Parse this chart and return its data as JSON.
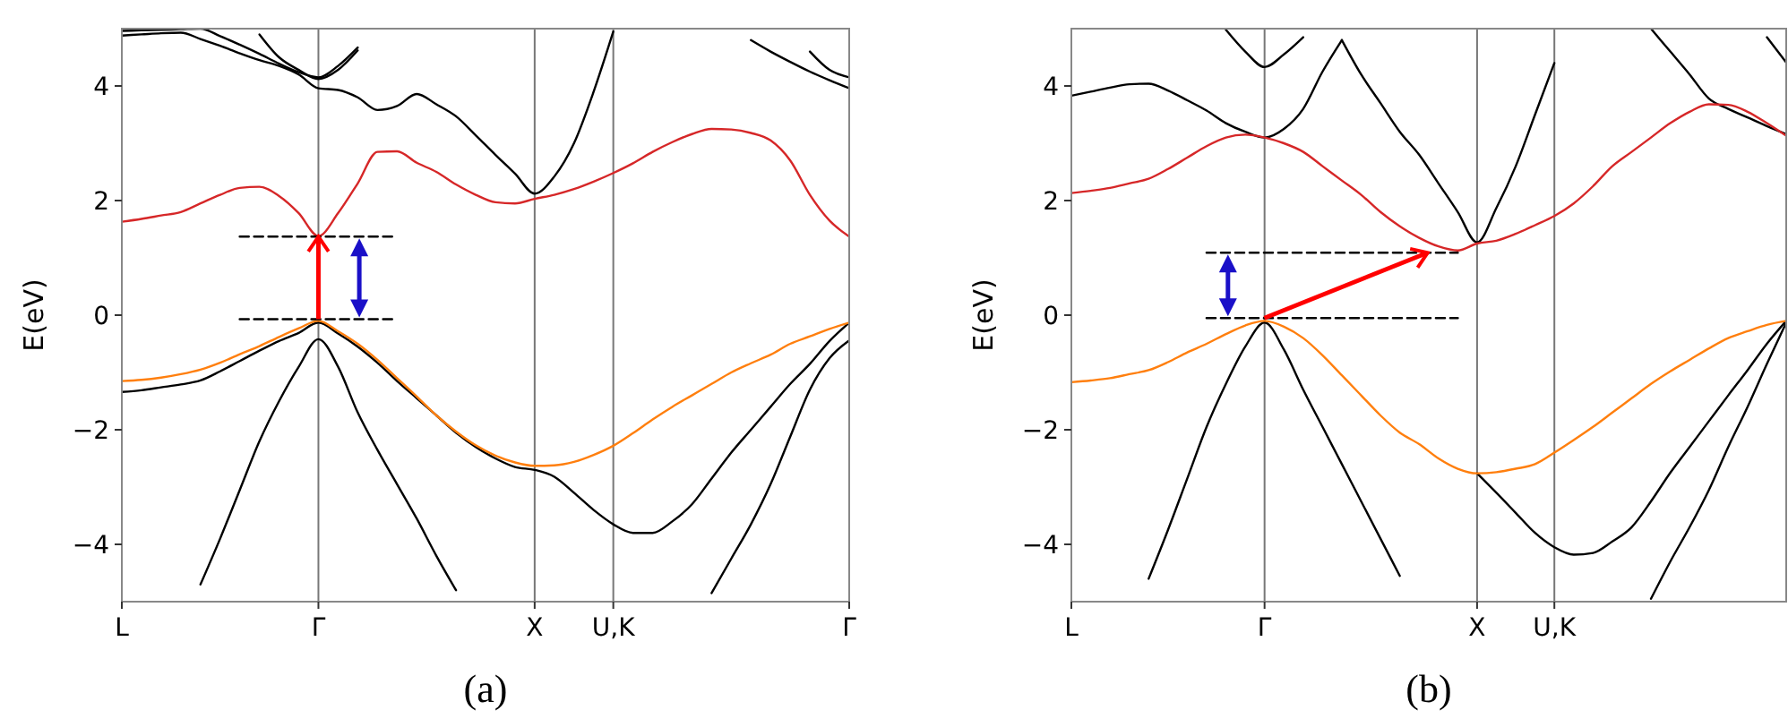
{
  "chart_data": [
    {
      "type": "line",
      "ylabel": "E(eV)",
      "annotations": [
        "(a)"
      ],
      "ylim": [
        -5,
        5
      ],
      "categories": [
        "L",
        null,
        null,
        null,
        null,
        null,
        null,
        null,
        null,
        null,
        "Γ",
        null,
        null,
        null,
        null,
        null,
        null,
        null,
        null,
        null,
        null,
        "X",
        null,
        null,
        null,
        "U,K",
        null,
        null,
        null,
        null,
        null,
        null,
        null,
        null,
        null,
        null,
        null,
        "Γ"
      ],
      "yticks": [
        -4,
        -2,
        0,
        2,
        4
      ],
      "grid": "x",
      "line_style": "solid",
      "series": [
        {
          "color": "#000000",
          "values": [
            4.88,
            4.9,
            4.92,
            4.93,
            4.82,
            4.7,
            4.57,
            4.45,
            4.35,
            4.2,
            3.96,
            3.93,
            3.8,
            3.58,
            3.65,
            3.86,
            3.68,
            3.47,
            3.14,
            2.8,
            2.47,
            2.12,
            2.42,
            3.0,
            3.9,
            4.95,
            null,
            null,
            null,
            null,
            null,
            null,
            null,
            null,
            null,
            null,
            null,
            null
          ]
        },
        {
          "color": "#000000",
          "values": [
            4.96,
            4.97,
            4.98,
            4.99,
            5.0,
            4.87,
            4.72,
            4.56,
            4.39,
            4.24,
            4.15,
            4.35,
            4.67,
            null,
            null,
            null,
            null,
            null,
            null,
            null,
            null,
            null,
            null,
            null,
            null,
            null,
            null,
            null,
            null,
            null,
            null,
            null,
            null,
            null,
            null,
            null,
            null,
            null
          ]
        },
        {
          "color": "#000000",
          "values": [
            null,
            null,
            null,
            null,
            null,
            null,
            null,
            4.9,
            4.5,
            4.28,
            4.12,
            4.28,
            4.62,
            null,
            null,
            null,
            null,
            null,
            null,
            null,
            null,
            null,
            null,
            null,
            null,
            null,
            null,
            null,
            null,
            null,
            null,
            null,
            null,
            null,
            null,
            null,
            null,
            null
          ]
        },
        {
          "color": "#000000",
          "values": [
            null,
            null,
            null,
            null,
            null,
            null,
            null,
            null,
            null,
            null,
            null,
            null,
            null,
            null,
            null,
            null,
            null,
            null,
            null,
            null,
            null,
            null,
            null,
            null,
            null,
            null,
            null,
            null,
            null,
            null,
            null,
            null,
            4.8,
            4.6,
            4.42,
            4.25,
            4.1,
            3.96
          ]
        },
        {
          "color": "#000000",
          "values": [
            null,
            null,
            null,
            null,
            null,
            null,
            null,
            null,
            null,
            null,
            null,
            null,
            null,
            null,
            null,
            null,
            null,
            null,
            null,
            null,
            null,
            null,
            null,
            null,
            null,
            null,
            null,
            null,
            null,
            null,
            null,
            null,
            null,
            null,
            null,
            4.6,
            4.28,
            4.15
          ]
        },
        {
          "color": "#d62728",
          "values": [
            1.63,
            1.68,
            1.74,
            1.8,
            1.95,
            2.1,
            2.22,
            2.24,
            2.08,
            1.78,
            1.38,
            1.78,
            2.3,
            2.85,
            2.86,
            2.66,
            2.5,
            2.28,
            2.1,
            1.97,
            1.95,
            2.03,
            2.1,
            2.2,
            2.33,
            2.48,
            2.65,
            2.85,
            3.02,
            3.16,
            3.25,
            3.24,
            3.18,
            3.05,
            2.7,
            2.1,
            1.65,
            1.37
          ]
        },
        {
          "color": "#000000",
          "values": [
            -1.34,
            -1.31,
            -1.26,
            -1.21,
            -1.14,
            -0.98,
            -0.8,
            -0.62,
            -0.45,
            -0.31,
            -0.13,
            -0.32,
            -0.55,
            -0.83,
            -1.15,
            -1.45,
            -1.75,
            -2.05,
            -2.3,
            -2.5,
            -2.65,
            -2.7,
            -2.82,
            -3.1,
            -3.4,
            -3.65,
            -3.8,
            -3.8,
            -3.6,
            -3.3,
            -2.85,
            -2.4,
            -2.0,
            -1.6,
            -1.2,
            -0.85,
            -0.45,
            -0.13
          ]
        },
        {
          "color": "#000000",
          "values": [
            null,
            null,
            null,
            null,
            -4.7,
            -3.9,
            -3.05,
            -2.2,
            -1.5,
            -0.9,
            -0.42,
            -0.9,
            -1.7,
            -2.35,
            -2.95,
            -3.55,
            -4.2,
            -4.8,
            null,
            null,
            null,
            null,
            null,
            null,
            null,
            null,
            null,
            null,
            null,
            null,
            null,
            null,
            null,
            null,
            null,
            null,
            null,
            null
          ]
        },
        {
          "color": "#000000",
          "values": [
            null,
            null,
            null,
            null,
            null,
            null,
            null,
            null,
            null,
            null,
            null,
            null,
            null,
            null,
            null,
            null,
            null,
            null,
            null,
            null,
            null,
            null,
            null,
            null,
            null,
            null,
            null,
            null,
            null,
            null,
            -4.85,
            -4.25,
            -3.65,
            -2.95,
            -2.12,
            -1.3,
            -0.75,
            -0.44
          ]
        },
        {
          "color": "#ff7f0e",
          "values": [
            -1.15,
            -1.13,
            -1.09,
            -1.03,
            -0.95,
            -0.83,
            -0.68,
            -0.54,
            -0.38,
            -0.23,
            -0.1,
            -0.28,
            -0.5,
            -0.78,
            -1.1,
            -1.42,
            -1.75,
            -2.03,
            -2.27,
            -2.45,
            -2.57,
            -2.63,
            -2.62,
            -2.56,
            -2.44,
            -2.28,
            -2.06,
            -1.82,
            -1.6,
            -1.4,
            -1.2,
            -1.0,
            -0.84,
            -0.69,
            -0.5,
            -0.37,
            -0.24,
            -0.13
          ]
        },
        {
          "color": "#000000",
          "line_style": "dashed",
          "values": [
            null,
            null,
            null,
            null,
            null,
            null,
            1.37,
            1.37,
            1.37,
            1.37,
            1.37,
            1.37,
            1.37,
            1.37,
            1.37,
            null,
            null,
            null,
            null,
            null,
            null,
            null,
            null,
            null,
            null,
            null,
            null,
            null,
            null,
            null,
            null,
            null,
            null,
            null,
            null,
            null,
            null,
            null
          ]
        },
        {
          "color": "#000000",
          "line_style": "dashed",
          "values": [
            null,
            null,
            null,
            null,
            null,
            null,
            -0.07,
            -0.07,
            -0.07,
            -0.07,
            -0.07,
            -0.07,
            -0.07,
            -0.07,
            -0.07,
            null,
            null,
            null,
            null,
            null,
            null,
            null,
            null,
            null,
            null,
            null,
            null,
            null,
            null,
            null,
            null,
            null,
            null,
            null,
            null,
            null,
            null,
            null
          ]
        }
      ]
    },
    {
      "type": "line",
      "ylabel": "E(eV)",
      "annotations": [
        "(b)"
      ],
      "ylim": [
        -5,
        5
      ],
      "categories": [
        "L",
        null,
        null,
        null,
        null,
        null,
        null,
        null,
        null,
        null,
        "Γ",
        null,
        null,
        null,
        null,
        null,
        null,
        null,
        null,
        null,
        null,
        "X",
        null,
        null,
        null,
        "U,K",
        null,
        null,
        null,
        null,
        null,
        null,
        null,
        null,
        null,
        null,
        null,
        null
      ],
      "yticks": [
        -4,
        -2,
        0,
        2,
        4
      ],
      "grid": "x",
      "line_style": "solid",
      "series": [
        {
          "color": "#000000",
          "values": [
            3.83,
            3.9,
            3.97,
            4.03,
            4.04,
            3.92,
            3.75,
            3.57,
            3.35,
            3.2,
            3.1,
            3.25,
            3.6,
            4.25,
            4.8,
            null,
            null,
            null,
            null,
            null,
            null,
            null,
            null,
            null,
            null,
            null,
            null,
            null,
            null,
            null,
            null,
            null,
            null,
            null,
            null,
            null,
            null,
            null
          ]
        },
        {
          "color": "#000000",
          "values": [
            null,
            null,
            null,
            null,
            null,
            null,
            null,
            null,
            null,
            null,
            null,
            null,
            null,
            null,
            4.8,
            4.2,
            3.7,
            3.2,
            2.8,
            2.3,
            1.8,
            1.27,
            1.87,
            2.6,
            3.5,
            4.4,
            null,
            null,
            null,
            null,
            null,
            null,
            null,
            null,
            null,
            null,
            null,
            null
          ]
        },
        {
          "color": "#000000",
          "values": [
            null,
            null,
            null,
            null,
            null,
            null,
            null,
            null,
            4.98,
            4.6,
            4.33,
            4.55,
            4.85,
            null,
            null,
            null,
            null,
            null,
            null,
            null,
            null,
            null,
            null,
            null,
            null,
            null,
            null,
            null,
            null,
            null,
            null,
            null,
            null,
            null,
            null,
            null,
            null,
            null
          ]
        },
        {
          "color": "#000000",
          "values": [
            null,
            null,
            null,
            null,
            null,
            null,
            null,
            null,
            null,
            null,
            null,
            null,
            null,
            null,
            null,
            null,
            null,
            null,
            null,
            null,
            null,
            null,
            null,
            null,
            null,
            null,
            null,
            null,
            null,
            null,
            5.0,
            4.6,
            4.2,
            3.78,
            3.6,
            3.45,
            3.3,
            3.16
          ]
        },
        {
          "color": "#000000",
          "values": [
            null,
            null,
            null,
            null,
            null,
            null,
            null,
            null,
            null,
            null,
            null,
            null,
            null,
            null,
            null,
            null,
            null,
            null,
            null,
            null,
            null,
            null,
            null,
            null,
            null,
            null,
            null,
            null,
            null,
            null,
            null,
            null,
            null,
            null,
            null,
            null,
            4.85,
            4.41
          ]
        },
        {
          "color": "#d62728",
          "values": [
            2.13,
            2.17,
            2.22,
            2.3,
            2.38,
            2.55,
            2.75,
            2.95,
            3.1,
            3.15,
            3.1,
            3.0,
            2.85,
            2.6,
            2.35,
            2.1,
            1.8,
            1.55,
            1.35,
            1.2,
            1.13,
            1.25,
            1.3,
            1.42,
            1.57,
            1.73,
            1.95,
            2.25,
            2.6,
            2.85,
            3.1,
            3.35,
            3.55,
            3.68,
            3.67,
            3.55,
            3.35,
            3.13
          ]
        },
        {
          "color": "#000000",
          "values": [
            null,
            null,
            null,
            null,
            null,
            null,
            null,
            null,
            null,
            null,
            null,
            null,
            null,
            null,
            null,
            null,
            null,
            null,
            null,
            null,
            null,
            -2.76,
            -3.1,
            -3.45,
            -3.8,
            -4.05,
            -4.18,
            -4.15,
            -3.95,
            -3.7,
            -3.25,
            -2.75,
            -2.3,
            -1.85,
            -1.4,
            -0.96,
            -0.5,
            -0.1
          ]
        },
        {
          "color": "#000000",
          "values": [
            null,
            null,
            null,
            null,
            -4.6,
            -3.75,
            -2.85,
            -1.95,
            -1.2,
            -0.55,
            -0.13,
            -0.6,
            -1.3,
            -1.95,
            -2.6,
            -3.25,
            -3.9,
            -4.55,
            null,
            null,
            null,
            null,
            null,
            null,
            null,
            null,
            null,
            null,
            null,
            null,
            null,
            null,
            null,
            null,
            null,
            null,
            null,
            null
          ]
        },
        {
          "color": "#000000",
          "values": [
            null,
            null,
            null,
            null,
            null,
            null,
            null,
            null,
            null,
            null,
            null,
            null,
            null,
            null,
            null,
            null,
            null,
            null,
            null,
            null,
            null,
            null,
            null,
            null,
            null,
            null,
            null,
            null,
            null,
            null,
            -4.95,
            -4.3,
            -3.7,
            -3.05,
            -2.3,
            -1.6,
            -0.85,
            -0.13
          ]
        },
        {
          "color": "#ff7f0e",
          "values": [
            -1.17,
            -1.14,
            -1.1,
            -1.03,
            -0.96,
            -0.82,
            -0.65,
            -0.5,
            -0.33,
            -0.18,
            -0.1,
            -0.2,
            -0.4,
            -0.7,
            -1.05,
            -1.4,
            -1.75,
            -2.05,
            -2.25,
            -2.5,
            -2.68,
            -2.76,
            -2.74,
            -2.68,
            -2.6,
            -2.4,
            -2.18,
            -1.95,
            -1.7,
            -1.45,
            -1.2,
            -0.98,
            -0.78,
            -0.58,
            -0.4,
            -0.28,
            -0.17,
            -0.1
          ]
        },
        {
          "color": "#000000",
          "line_style": "dashed",
          "values": [
            null,
            null,
            null,
            null,
            null,
            null,
            null,
            1.09,
            1.09,
            1.09,
            1.09,
            1.09,
            1.09,
            1.09,
            1.09,
            1.09,
            1.09,
            1.09,
            1.09,
            1.09,
            1.09,
            null,
            null,
            null,
            null,
            null,
            null,
            null,
            null,
            null,
            null,
            null,
            null,
            null,
            null,
            null,
            null,
            null
          ]
        },
        {
          "color": "#000000",
          "line_style": "dashed",
          "values": [
            null,
            null,
            null,
            null,
            null,
            null,
            null,
            -0.05,
            -0.05,
            -0.05,
            -0.05,
            -0.05,
            -0.05,
            -0.05,
            -0.05,
            -0.05,
            -0.05,
            -0.05,
            -0.05,
            -0.05,
            -0.05,
            null,
            null,
            null,
            null,
            null,
            null,
            null,
            null,
            null,
            null,
            null,
            null,
            null,
            null,
            null,
            null,
            null
          ]
        }
      ]
    }
  ]
}
